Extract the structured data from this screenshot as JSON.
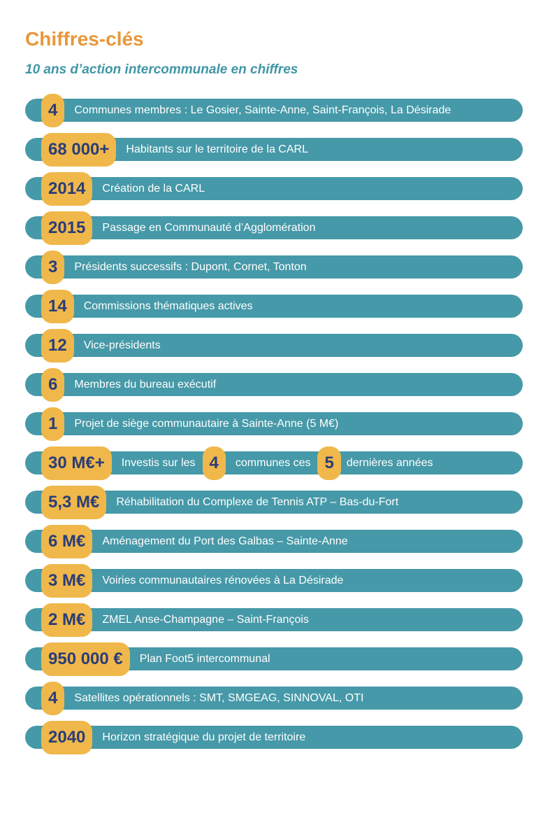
{
  "header": {
    "title": "Chiffres-clés",
    "subtitle": "10 ans d’action intercommunale en chiffres"
  },
  "rows": [
    {
      "num": "4",
      "text": "Communes membres : Le Gosier, Sainte-Anne, Saint-François, La Désirade"
    },
    {
      "num": "68 000+",
      "text": "Habitants sur le territoire de la CARL"
    },
    {
      "num": "2014",
      "text": "Création de la CARL"
    },
    {
      "num": "2015",
      "text": "Passage en Communauté d’Agglomération"
    },
    {
      "num": "3",
      "text": "Présidents successifs : Dupont, Cornet, Tonton"
    },
    {
      "num": "14",
      "text": "Commissions thématiques actives"
    },
    {
      "num": "12",
      "text": "Vice-présidents"
    },
    {
      "num": "6",
      "text": "Membres du bureau exécutif"
    },
    {
      "num": "1",
      "text": "Projet de siège communautaire à Sainte-Anne (5 M€)"
    },
    {
      "num": "30 M€+",
      "text": "Investis sur les",
      "num2": "4",
      "text2": "communes ces",
      "num3": "5",
      "text3": "dernières années"
    },
    {
      "num": "5,3 M€",
      "text": "Réhabilitation du Complexe de Tennis ATP – Bas-du-Fort"
    },
    {
      "num": "6 M€",
      "text": "Aménagement du Port des Galbas – Sainte-Anne"
    },
    {
      "num": "3 M€",
      "text": "Voiries communautaires rénovées à La Désirade"
    },
    {
      "num": "2 M€",
      "text": "ZMEL Anse-Champagne – Saint-François"
    },
    {
      "num": "950 000 €",
      "text": "Plan Foot5 intercommunal"
    },
    {
      "num": "4",
      "text": "Satellites opérationnels : SMT, SMGEAG, SINNOVAL, OTI"
    },
    {
      "num": "2040",
      "text": "Horizon stratégique du projet de territoire"
    }
  ]
}
